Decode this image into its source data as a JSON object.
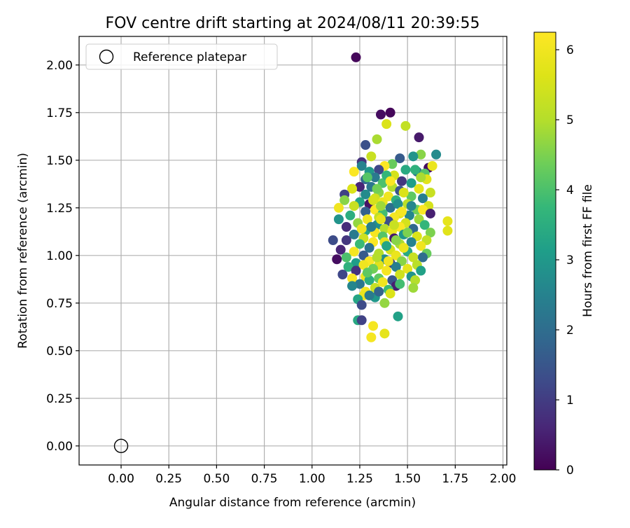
{
  "chart_data": {
    "type": "scatter",
    "title": "FOV centre drift starting at 2024/08/11 20:39:55",
    "xlabel": "Angular distance from reference (arcmin)",
    "ylabel": "Rotation from reference (arcmin)",
    "xlim": [
      -0.22,
      2.02
    ],
    "ylim": [
      -0.1,
      2.15
    ],
    "xticks": [
      "0.00",
      "0.25",
      "0.50",
      "0.75",
      "1.00",
      "1.25",
      "1.50",
      "1.75",
      "2.00"
    ],
    "yticks": [
      "0.00",
      "0.25",
      "0.50",
      "0.75",
      "1.00",
      "1.25",
      "1.50",
      "1.75",
      "2.00"
    ],
    "grid": true,
    "legend_position": "top-left",
    "legend": {
      "label": "Reference platepar"
    },
    "reference_point": {
      "x": 0.0,
      "y": 0.0
    },
    "colorbar": {
      "label": "Hours from first FF file",
      "colormap": "viridis",
      "range": [
        0,
        6.25
      ],
      "ticks": [
        "0",
        "1",
        "2",
        "3",
        "4",
        "5",
        "6"
      ]
    },
    "series": [
      {
        "points": [
          {
            "x": 1.23,
            "y": 2.04,
            "c": 0.1
          },
          {
            "x": 1.36,
            "y": 1.74,
            "c": 0.2
          },
          {
            "x": 1.41,
            "y": 1.75,
            "c": 0.1
          },
          {
            "x": 1.56,
            "y": 1.62,
            "c": 0.4
          },
          {
            "x": 1.39,
            "y": 1.69,
            "c": 5.6
          },
          {
            "x": 1.49,
            "y": 1.68,
            "c": 5.2
          },
          {
            "x": 1.34,
            "y": 1.61,
            "c": 4.9
          },
          {
            "x": 1.28,
            "y": 1.58,
            "c": 1.4
          },
          {
            "x": 1.65,
            "y": 1.53,
            "c": 2.7
          },
          {
            "x": 1.57,
            "y": 1.53,
            "c": 4.6
          },
          {
            "x": 1.53,
            "y": 1.52,
            "c": 2.9
          },
          {
            "x": 1.31,
            "y": 1.52,
            "c": 5.3
          },
          {
            "x": 1.46,
            "y": 1.51,
            "c": 1.6
          },
          {
            "x": 1.26,
            "y": 1.49,
            "c": 0.8
          },
          {
            "x": 1.42,
            "y": 1.48,
            "c": 4.3
          },
          {
            "x": 1.61,
            "y": 1.46,
            "c": 0.2
          },
          {
            "x": 1.63,
            "y": 1.47,
            "c": 5.9
          },
          {
            "x": 1.38,
            "y": 1.47,
            "c": 6.2
          },
          {
            "x": 1.26,
            "y": 1.47,
            "c": 2.5
          },
          {
            "x": 1.35,
            "y": 1.45,
            "c": 1.2
          },
          {
            "x": 1.49,
            "y": 1.45,
            "c": 3.4
          },
          {
            "x": 1.22,
            "y": 1.44,
            "c": 6.2
          },
          {
            "x": 1.3,
            "y": 1.44,
            "c": 3.0
          },
          {
            "x": 1.55,
            "y": 1.44,
            "c": 2.0
          },
          {
            "x": 1.59,
            "y": 1.43,
            "c": 4.1
          },
          {
            "x": 1.43,
            "y": 1.42,
            "c": 5.5
          },
          {
            "x": 1.33,
            "y": 1.41,
            "c": 2.3
          },
          {
            "x": 1.28,
            "y": 1.4,
            "c": 1.9
          },
          {
            "x": 1.6,
            "y": 1.4,
            "c": 5.7
          },
          {
            "x": 1.47,
            "y": 1.39,
            "c": 0.9
          },
          {
            "x": 1.37,
            "y": 1.38,
            "c": 4.0
          },
          {
            "x": 1.52,
            "y": 1.38,
            "c": 3.1
          },
          {
            "x": 1.25,
            "y": 1.36,
            "c": 0.6
          },
          {
            "x": 1.31,
            "y": 1.36,
            "c": 2.2
          },
          {
            "x": 1.42,
            "y": 1.36,
            "c": 5.0
          },
          {
            "x": 1.56,
            "y": 1.35,
            "c": 5.8
          },
          {
            "x": 1.21,
            "y": 1.35,
            "c": 5.6
          },
          {
            "x": 1.46,
            "y": 1.34,
            "c": 1.5
          },
          {
            "x": 1.35,
            "y": 1.33,
            "c": 4.6
          },
          {
            "x": 1.62,
            "y": 1.33,
            "c": 5.3
          },
          {
            "x": 1.17,
            "y": 1.32,
            "c": 1.1
          },
          {
            "x": 1.28,
            "y": 1.32,
            "c": 2.7
          },
          {
            "x": 1.4,
            "y": 1.31,
            "c": 6.0
          },
          {
            "x": 1.52,
            "y": 1.31,
            "c": 4.2
          },
          {
            "x": 1.33,
            "y": 1.3,
            "c": 5.4
          },
          {
            "x": 1.58,
            "y": 1.3,
            "c": 2.4
          },
          {
            "x": 1.17,
            "y": 1.29,
            "c": 4.6
          },
          {
            "x": 1.44,
            "y": 1.29,
            "c": 3.6
          },
          {
            "x": 1.25,
            "y": 1.28,
            "c": 3.2
          },
          {
            "x": 1.37,
            "y": 1.28,
            "c": 5.9
          },
          {
            "x": 1.3,
            "y": 1.27,
            "c": 0.3
          },
          {
            "x": 1.5,
            "y": 1.27,
            "c": 5.1
          },
          {
            "x": 1.22,
            "y": 1.26,
            "c": 5.3
          },
          {
            "x": 1.61,
            "y": 1.26,
            "c": 5.5
          },
          {
            "x": 1.41,
            "y": 1.25,
            "c": 2.1
          },
          {
            "x": 1.14,
            "y": 1.25,
            "c": 6.0
          },
          {
            "x": 1.33,
            "y": 1.24,
            "c": 6.2
          },
          {
            "x": 1.55,
            "y": 1.24,
            "c": 4.4
          },
          {
            "x": 1.58,
            "y": 1.24,
            "c": 6.2
          },
          {
            "x": 1.28,
            "y": 1.23,
            "c": 1.7
          },
          {
            "x": 1.46,
            "y": 1.22,
            "c": 5.7
          },
          {
            "x": 1.37,
            "y": 1.22,
            "c": 3.9
          },
          {
            "x": 1.62,
            "y": 1.22,
            "c": 0.5
          },
          {
            "x": 1.2,
            "y": 1.21,
            "c": 3.5
          },
          {
            "x": 1.51,
            "y": 1.21,
            "c": 2.6
          },
          {
            "x": 1.35,
            "y": 1.2,
            "c": 5.2
          },
          {
            "x": 1.43,
            "y": 1.2,
            "c": 6.1
          },
          {
            "x": 1.14,
            "y": 1.19,
            "c": 2.9
          },
          {
            "x": 1.56,
            "y": 1.19,
            "c": 4.8
          },
          {
            "x": 1.29,
            "y": 1.19,
            "c": 6.0
          },
          {
            "x": 1.4,
            "y": 1.18,
            "c": 1.4
          },
          {
            "x": 1.71,
            "y": 1.18,
            "c": 5.8
          },
          {
            "x": 1.24,
            "y": 1.17,
            "c": 4.7
          },
          {
            "x": 1.49,
            "y": 1.17,
            "c": 5.5
          },
          {
            "x": 1.34,
            "y": 1.16,
            "c": 2.8
          },
          {
            "x": 1.59,
            "y": 1.16,
            "c": 3.7
          },
          {
            "x": 1.46,
            "y": 1.15,
            "c": 6.2
          },
          {
            "x": 1.18,
            "y": 1.15,
            "c": 0.7
          },
          {
            "x": 1.38,
            "y": 1.14,
            "c": 5.0
          },
          {
            "x": 1.53,
            "y": 1.14,
            "c": 1.9
          },
          {
            "x": 1.28,
            "y": 1.13,
            "c": 3.3
          },
          {
            "x": 1.42,
            "y": 1.13,
            "c": 5.9
          },
          {
            "x": 1.71,
            "y": 1.13,
            "c": 5.7
          },
          {
            "x": 1.62,
            "y": 1.12,
            "c": 4.5
          },
          {
            "x": 1.33,
            "y": 1.12,
            "c": 6.1
          },
          {
            "x": 1.22,
            "y": 1.11,
            "c": 2.3
          },
          {
            "x": 1.48,
            "y": 1.11,
            "c": 3.0
          },
          {
            "x": 1.55,
            "y": 1.1,
            "c": 5.6
          },
          {
            "x": 1.37,
            "y": 1.1,
            "c": 4.1
          },
          {
            "x": 1.27,
            "y": 1.09,
            "c": 5.4
          },
          {
            "x": 1.43,
            "y": 1.09,
            "c": 0.4
          },
          {
            "x": 1.6,
            "y": 1.08,
            "c": 5.2
          },
          {
            "x": 1.11,
            "y": 1.08,
            "c": 1.3
          },
          {
            "x": 1.18,
            "y": 1.08,
            "c": 0.9
          },
          {
            "x": 1.32,
            "y": 1.07,
            "c": 6.2
          },
          {
            "x": 1.52,
            "y": 1.07,
            "c": 2.5
          },
          {
            "x": 1.38,
            "y": 1.07,
            "c": 5.8
          },
          {
            "x": 1.25,
            "y": 1.06,
            "c": 3.8
          },
          {
            "x": 1.46,
            "y": 1.06,
            "c": 4.9
          },
          {
            "x": 1.57,
            "y": 1.05,
            "c": 6.0
          },
          {
            "x": 1.3,
            "y": 1.04,
            "c": 2.1
          },
          {
            "x": 1.15,
            "y": 1.03,
            "c": 0.6
          },
          {
            "x": 1.41,
            "y": 1.03,
            "c": 5.5
          },
          {
            "x": 1.22,
            "y": 1.02,
            "c": 6.1
          },
          {
            "x": 1.5,
            "y": 1.02,
            "c": 3.4
          },
          {
            "x": 1.35,
            "y": 1.01,
            "c": 5.0
          },
          {
            "x": 1.6,
            "y": 1.01,
            "c": 4.3
          },
          {
            "x": 1.27,
            "y": 1.0,
            "c": 1.6
          },
          {
            "x": 1.44,
            "y": 1.0,
            "c": 5.9
          },
          {
            "x": 1.18,
            "y": 0.99,
            "c": 4.0
          },
          {
            "x": 1.53,
            "y": 0.99,
            "c": 5.3
          },
          {
            "x": 1.38,
            "y": 0.98,
            "c": 2.7
          },
          {
            "x": 1.58,
            "y": 0.99,
            "c": 2.0
          },
          {
            "x": 1.13,
            "y": 0.98,
            "c": 0.2
          },
          {
            "x": 1.3,
            "y": 0.97,
            "c": 6.2
          },
          {
            "x": 1.47,
            "y": 0.97,
            "c": 4.6
          },
          {
            "x": 1.23,
            "y": 0.96,
            "c": 3.1
          },
          {
            "x": 1.41,
            "y": 0.96,
            "c": 1.1
          },
          {
            "x": 1.35,
            "y": 0.95,
            "c": 5.7
          },
          {
            "x": 1.55,
            "y": 0.95,
            "c": 5.1
          },
          {
            "x": 1.27,
            "y": 0.95,
            "c": 6.0
          },
          {
            "x": 1.19,
            "y": 0.94,
            "c": 3.6
          },
          {
            "x": 1.44,
            "y": 0.94,
            "c": 2.4
          },
          {
            "x": 1.5,
            "y": 0.93,
            "c": 5.8
          },
          {
            "x": 1.32,
            "y": 0.93,
            "c": 4.4
          },
          {
            "x": 1.23,
            "y": 0.92,
            "c": 0.8
          },
          {
            "x": 1.39,
            "y": 0.92,
            "c": 6.1
          },
          {
            "x": 1.57,
            "y": 0.92,
            "c": 3.2
          },
          {
            "x": 1.16,
            "y": 0.9,
            "c": 1.2
          },
          {
            "x": 1.46,
            "y": 0.9,
            "c": 5.4
          },
          {
            "x": 1.28,
            "y": 0.89,
            "c": 5.9
          },
          {
            "x": 1.52,
            "y": 0.89,
            "c": 2.9
          },
          {
            "x": 1.35,
            "y": 0.88,
            "c": 4.2
          },
          {
            "x": 1.21,
            "y": 0.88,
            "c": 6.2
          },
          {
            "x": 1.42,
            "y": 0.87,
            "c": 1.5
          },
          {
            "x": 1.3,
            "y": 0.87,
            "c": 3.5
          },
          {
            "x": 1.54,
            "y": 0.87,
            "c": 5.0
          },
          {
            "x": 1.37,
            "y": 0.86,
            "c": 6.0
          },
          {
            "x": 1.25,
            "y": 0.85,
            "c": 2.2
          },
          {
            "x": 1.44,
            "y": 0.84,
            "c": 0.5
          },
          {
            "x": 1.21,
            "y": 0.84,
            "c": 2.6
          },
          {
            "x": 1.33,
            "y": 0.83,
            "c": 5.3
          },
          {
            "x": 1.53,
            "y": 0.83,
            "c": 4.8
          },
          {
            "x": 1.4,
            "y": 0.82,
            "c": 3.8
          },
          {
            "x": 1.28,
            "y": 0.81,
            "c": 6.1
          },
          {
            "x": 1.27,
            "y": 0.79,
            "c": 5.9
          },
          {
            "x": 1.33,
            "y": 0.78,
            "c": 3.0
          },
          {
            "x": 1.24,
            "y": 0.77,
            "c": 3.3
          },
          {
            "x": 1.38,
            "y": 0.75,
            "c": 4.7
          },
          {
            "x": 1.26,
            "y": 0.74,
            "c": 1.3
          },
          {
            "x": 1.35,
            "y": 0.81,
            "c": 1.8
          },
          {
            "x": 1.41,
            "y": 0.8,
            "c": 5.6
          },
          {
            "x": 1.3,
            "y": 0.79,
            "c": 2.3
          },
          {
            "x": 1.24,
            "y": 0.66,
            "c": 3.4
          },
          {
            "x": 1.26,
            "y": 0.66,
            "c": 1.1
          },
          {
            "x": 1.45,
            "y": 0.68,
            "c": 3.2
          },
          {
            "x": 1.32,
            "y": 0.63,
            "c": 6.1
          },
          {
            "x": 1.38,
            "y": 0.59,
            "c": 5.8
          },
          {
            "x": 1.31,
            "y": 0.57,
            "c": 6.1
          },
          {
            "x": 1.45,
            "y": 1.27,
            "c": 2.8
          },
          {
            "x": 1.34,
            "y": 1.35,
            "c": 4.4
          },
          {
            "x": 1.39,
            "y": 1.42,
            "c": 3.7
          },
          {
            "x": 1.48,
            "y": 1.33,
            "c": 5.6
          },
          {
            "x": 1.29,
            "y": 1.41,
            "c": 4.1
          },
          {
            "x": 1.52,
            "y": 1.26,
            "c": 2.6
          },
          {
            "x": 1.36,
            "y": 1.26,
            "c": 4.8
          },
          {
            "x": 1.43,
            "y": 1.16,
            "c": 5.3
          },
          {
            "x": 1.31,
            "y": 1.15,
            "c": 2.4
          },
          {
            "x": 1.48,
            "y": 1.04,
            "c": 5.9
          },
          {
            "x": 1.39,
            "y": 1.05,
            "c": 3.3
          },
          {
            "x": 1.34,
            "y": 0.99,
            "c": 5.0
          },
          {
            "x": 1.46,
            "y": 0.85,
            "c": 3.9
          },
          {
            "x": 1.26,
            "y": 1.14,
            "c": 6.0
          },
          {
            "x": 1.57,
            "y": 1.41,
            "c": 4.9
          },
          {
            "x": 1.41,
            "y": 1.39,
            "c": 6.2
          },
          {
            "x": 1.5,
            "y": 1.12,
            "c": 4.5
          },
          {
            "x": 1.36,
            "y": 1.19,
            "c": 5.8
          },
          {
            "x": 1.44,
            "y": 1.08,
            "c": 4.6
          },
          {
            "x": 1.32,
            "y": 1.29,
            "c": 5.5
          },
          {
            "x": 1.54,
            "y": 1.45,
            "c": 3.6
          },
          {
            "x": 1.29,
            "y": 0.91,
            "c": 4.2
          },
          {
            "x": 1.47,
            "y": 1.23,
            "c": 6.1
          },
          {
            "x": 1.4,
            "y": 0.97,
            "c": 6.0
          }
        ]
      }
    ]
  }
}
